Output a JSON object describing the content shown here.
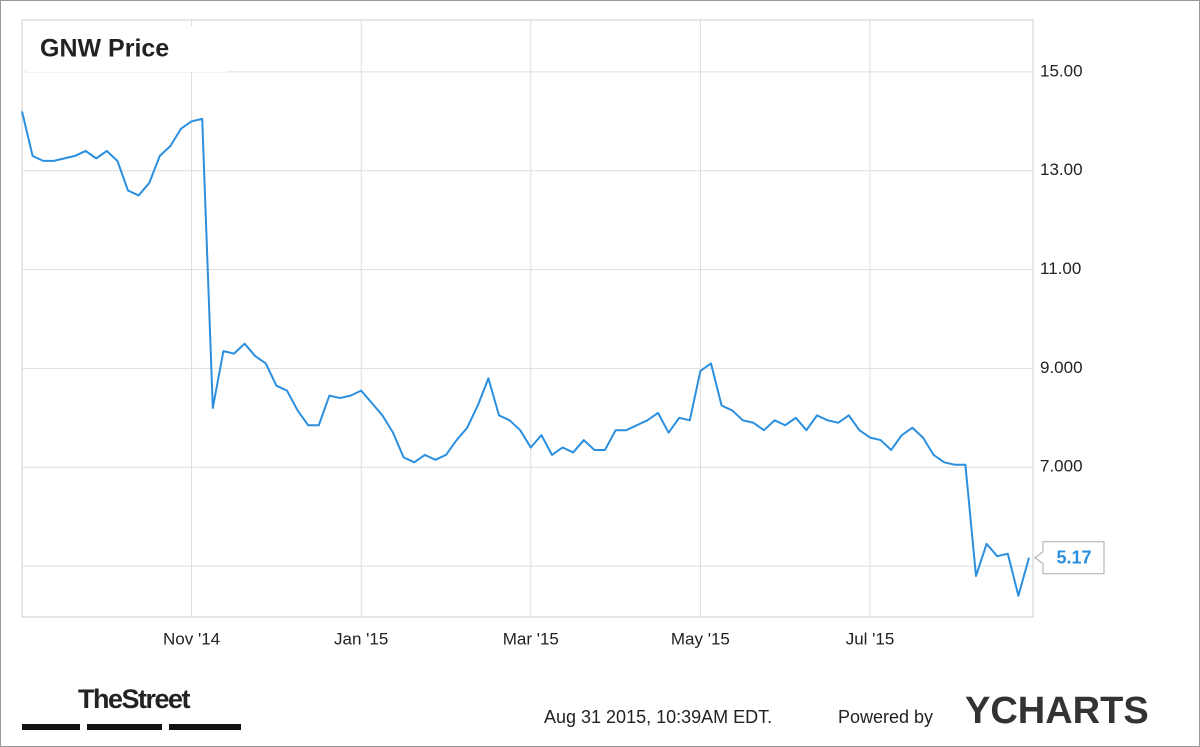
{
  "chart_data": {
    "type": "line",
    "title": "GNW Price",
    "categories": [
      null,
      null,
      null,
      null,
      null,
      null,
      null,
      null,
      null,
      null,
      null,
      null,
      null,
      null,
      null,
      null,
      "Nov '14",
      null,
      null,
      null,
      null,
      null,
      null,
      null,
      null,
      null,
      null,
      null,
      null,
      null,
      null,
      null,
      "Jan '15",
      null,
      null,
      null,
      null,
      null,
      null,
      null,
      null,
      null,
      null,
      null,
      null,
      null,
      null,
      null,
      "Mar '15",
      null,
      null,
      null,
      null,
      null,
      null,
      null,
      null,
      null,
      null,
      null,
      null,
      null,
      null,
      null,
      "May '15",
      null,
      null,
      null,
      null,
      null,
      null,
      null,
      null,
      null,
      null,
      null,
      null,
      null,
      null,
      null,
      "Jul '15",
      null,
      null,
      null,
      null,
      null,
      null,
      null,
      null,
      null,
      null,
      null,
      null,
      null,
      null,
      null
    ],
    "series": [
      {
        "name": "GNW",
        "color": "#2b8fdf",
        "values": [
          14.2,
          13.3,
          13.2,
          13.2,
          13.25,
          13.3,
          13.4,
          13.25,
          13.4,
          13.2,
          12.6,
          12.5,
          12.75,
          13.3,
          13.5,
          13.85,
          14.0,
          14.05,
          8.2,
          9.35,
          9.3,
          9.5,
          9.25,
          9.1,
          8.65,
          8.55,
          8.15,
          7.85,
          7.85,
          8.45,
          8.4,
          8.45,
          8.55,
          8.3,
          8.05,
          7.7,
          7.2,
          7.1,
          7.25,
          7.15,
          7.25,
          7.55,
          7.8,
          8.25,
          8.8,
          8.05,
          7.95,
          7.75,
          7.4,
          7.65,
          7.25,
          7.4,
          7.3,
          7.55,
          7.35,
          7.35,
          7.75,
          7.75,
          7.85,
          7.95,
          8.1,
          7.7,
          8.0,
          7.95,
          8.95,
          9.1,
          8.25,
          8.15,
          7.95,
          7.9,
          7.75,
          7.95,
          7.85,
          8.0,
          7.75,
          8.05,
          7.95,
          7.9,
          8.05,
          7.75,
          7.6,
          7.55,
          7.35,
          7.65,
          7.8,
          7.6,
          7.25,
          7.1,
          7.05,
          7.05,
          4.8,
          5.45,
          5.2,
          5.25,
          4.4,
          5.17
        ]
      }
    ],
    "ylim": [
      3.97,
      16.05
    ],
    "yticks": [
      {
        "value": 5,
        "label": null
      },
      {
        "value": 7,
        "label": "7.000"
      },
      {
        "value": 9,
        "label": "9.000"
      },
      {
        "value": 11,
        "label": "11.00"
      },
      {
        "value": 13,
        "label": "13.00"
      },
      {
        "value": 15,
        "label": "15.00"
      }
    ],
    "grid": true,
    "source": "TheStreet",
    "timestamp": "Aug 31 2015, 10:39AM EDT.",
    "powered_by": "Powered by",
    "brand": "YCHARTS"
  }
}
